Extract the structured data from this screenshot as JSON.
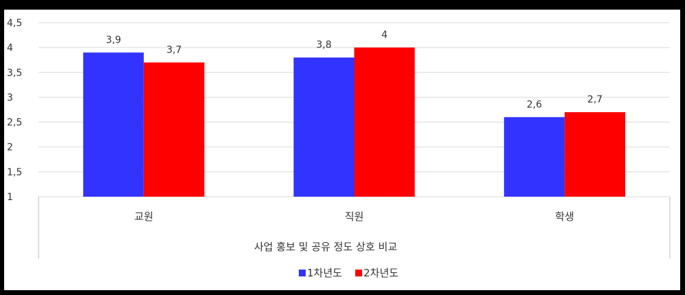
{
  "chart_data": {
    "type": "bar",
    "categories": [
      "교원",
      "직원",
      "학생"
    ],
    "group_label": "사업 홍보 및 공유 정도 상호 비교",
    "series": [
      {
        "name": "1차년도",
        "values": [
          3.9,
          3.8,
          2.6
        ],
        "color": "#3333ff"
      },
      {
        "name": "2차년도",
        "values": [
          3.7,
          4,
          2.7
        ],
        "color": "#ff0000"
      }
    ],
    "data_labels": [
      [
        "3.9",
        "3.8",
        "2.6"
      ],
      [
        "3.7",
        "4",
        "2.7"
      ]
    ],
    "y_ticks": [
      "1",
      "1.5",
      "2",
      "2.5",
      "3",
      "3.5",
      "4",
      "4.5"
    ],
    "ylim": [
      1,
      4.5
    ],
    "grid": true,
    "legend_position": "bottom",
    "title": "",
    "xlabel": "",
    "ylabel": ""
  }
}
